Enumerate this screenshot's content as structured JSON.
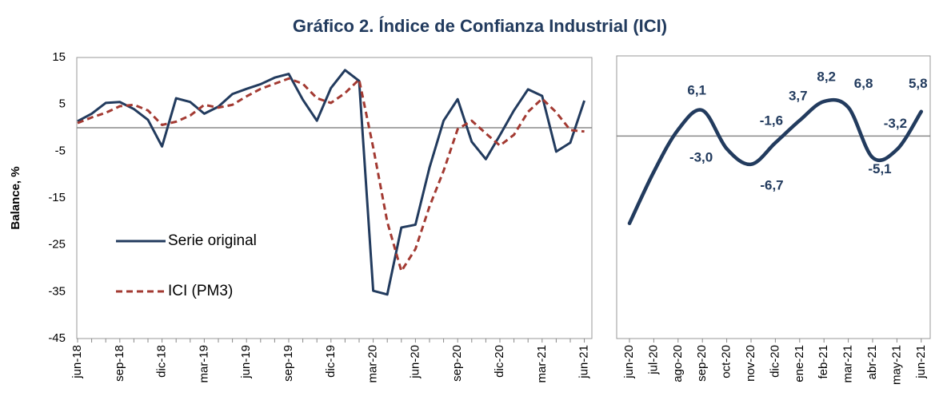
{
  "title": "Gráfico 2. Índice de Confianza Industrial (ICI)",
  "chart_data": [
    {
      "type": "line",
      "y_label": "Balance, %",
      "categories": [
        "jun-18",
        null,
        null,
        "sep-18",
        null,
        null,
        "dic-18",
        null,
        null,
        "mar-19",
        null,
        null,
        "jun-19",
        null,
        null,
        "sep-19",
        null,
        null,
        "dic-19",
        null,
        null,
        "mar-20",
        null,
        null,
        "jun-20",
        null,
        null,
        "sep-20",
        null,
        null,
        "dic-20",
        null,
        null,
        "mar-21",
        null,
        null,
        "jun-21"
      ],
      "series": [
        {
          "name": "Serie original",
          "color": "#223b5e",
          "dashed": false,
          "values": [
            1.4,
            3,
            5.3,
            5.5,
            4,
            1.7,
            -4,
            6.3,
            5.5,
            3,
            4.5,
            7.2,
            8.3,
            9.3,
            10.7,
            11.5,
            6,
            1.5,
            8.5,
            12.3,
            10,
            -34.8,
            -35.6,
            -21.3,
            -20.7,
            -8.5,
            1.5,
            6.1,
            -3,
            -6.7,
            -1.6,
            3.7,
            8.2,
            6.8,
            -5.1,
            -3.2,
            5.8
          ]
        },
        {
          "name": "ICI (PM3)",
          "color": "#a33a32",
          "dashed": true,
          "values": [
            1,
            2.2,
            3.2,
            4.6,
            4.9,
            3.7,
            0.6,
            1.3,
            2.6,
            4.9,
            4.3,
            4.9,
            6.7,
            8.3,
            9.4,
            10.5,
            9.4,
            6.3,
            5.3,
            7.4,
            10.3,
            -4.2,
            -20.1,
            -30.6,
            -25.9,
            -16.8,
            -9.2,
            -0.3,
            1.5,
            -1.2,
            -3.8,
            -1.5,
            3.4,
            6.2,
            3.3,
            -0.5,
            -0.8
          ]
        }
      ],
      "ylim": [
        -45,
        15
      ],
      "yticks": [
        15,
        5,
        -5,
        -15,
        -25,
        -35,
        -45
      ],
      "legend": "left"
    },
    {
      "type": "smooth-line",
      "categories": [
        "jun-20",
        "jul-20",
        "ago-20",
        "sep-20",
        "oct-20",
        "nov-20",
        "dic-20",
        "ene-21",
        "feb-21",
        "mar-21",
        "abr-21",
        "may-21",
        "jun-21"
      ],
      "series": [
        {
          "color": "#223b5e",
          "values": [
            -20.7,
            -8.5,
            1.5,
            6.1,
            -3,
            -6.7,
            -1.6,
            3.7,
            8.2,
            6.8,
            -5.1,
            -3.2,
            5.8
          ],
          "value_labels": [
            null,
            null,
            null,
            "6,1",
            "-3,0",
            "-6,7",
            "-1,6",
            "3,7",
            "8,2",
            "6,8",
            "-5,1",
            "-3,2",
            "5,8"
          ]
        }
      ],
      "ylim": [
        -48,
        19
      ]
    }
  ]
}
